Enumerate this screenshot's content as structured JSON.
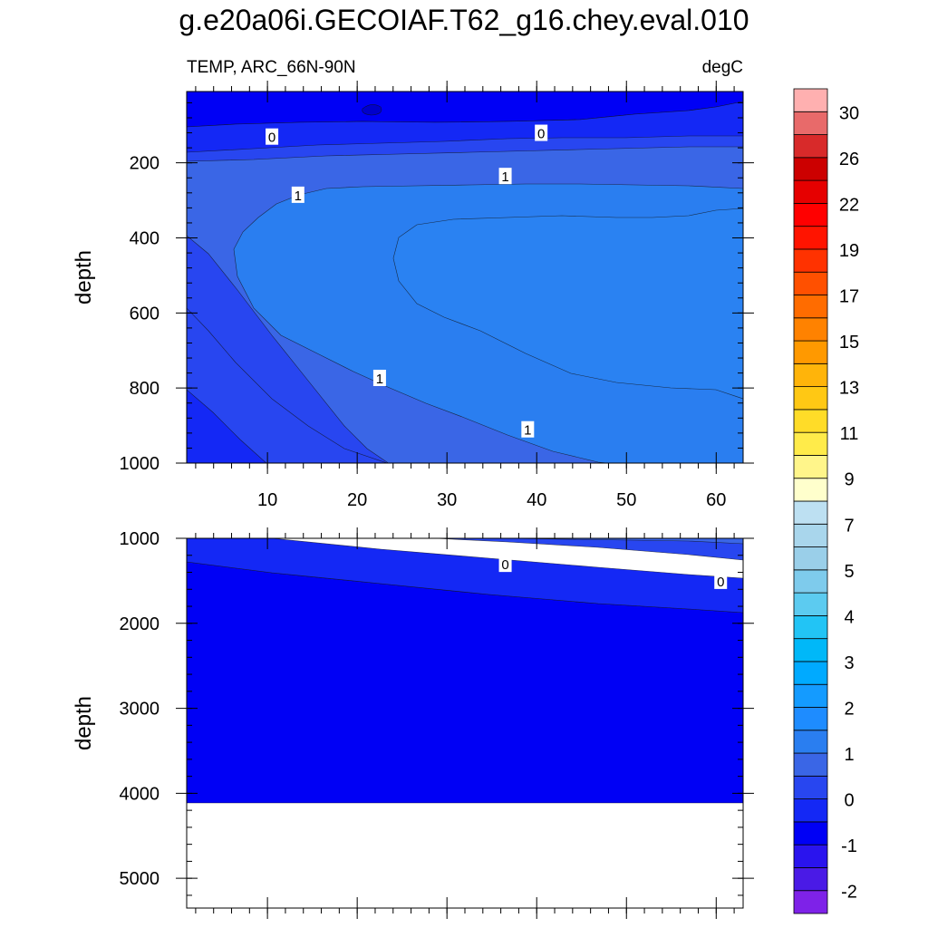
{
  "title": "g.e20a06i.GECOIAF.T62_g16.chey.eval.010",
  "subtitle_left": "TEMP, ARC_66N-90N",
  "subtitle_right": "degC",
  "colors": {
    "below_m1": "#0000f5",
    "m1_to_0": "#1428f5",
    "c0_to_05": "#2846f0",
    "c05_to_1": "#3a66e6",
    "c1_to_2": "#2a7ef0",
    "missing": "#ffffff"
  },
  "chart_data": [
    {
      "type": "contour",
      "panel": "upper",
      "title": "TEMP, ARC_66N-90N",
      "units": "degC",
      "xlabel": "",
      "ylabel": "depth",
      "xlim": [
        1,
        63
      ],
      "ylim": [
        1000,
        10
      ],
      "xticks": [
        10,
        20,
        30,
        40,
        50,
        60
      ],
      "xtick_labels": [
        "10",
        "20",
        "30",
        "40",
        "50",
        "60"
      ],
      "yticks": [
        200,
        400,
        600,
        800,
        1000
      ],
      "ytick_labels": [
        "200",
        "400",
        "600",
        "800",
        "1000"
      ],
      "contour_labels": [
        {
          "text": "0",
          "x": 10.5,
          "y": 130
        },
        {
          "text": "0",
          "x": 40.5,
          "y": 120
        },
        {
          "text": "1",
          "x": 36.5,
          "y": 235
        },
        {
          "text": "1",
          "x": 13.4,
          "y": 285
        },
        {
          "text": "1",
          "x": 22.5,
          "y": 773
        },
        {
          "text": "1",
          "x": 39.0,
          "y": 910
        }
      ]
    },
    {
      "type": "contour",
      "panel": "lower",
      "xlabel": "",
      "ylabel": "depth",
      "xlim": [
        1,
        63
      ],
      "ylim": [
        5350,
        1000
      ],
      "yticks": [
        1000,
        2000,
        3000,
        4000,
        5000
      ],
      "ytick_labels": [
        "1000",
        "2000",
        "3000",
        "4000",
        "5000"
      ],
      "contour_labels": [
        {
          "text": "0",
          "x": 36.5,
          "y": 1300
        },
        {
          "text": "0",
          "x": 60.5,
          "y": 1500
        }
      ],
      "missing_below_depth": 4100
    },
    {
      "type": "colorbar",
      "bins": [
        {
          "color": "#7e22e8",
          "label": "-2"
        },
        {
          "color": "#4a1ae6",
          "label": ""
        },
        {
          "color": "#2a14ee",
          "label": "-1"
        },
        {
          "color": "#0000f5",
          "label": ""
        },
        {
          "color": "#1428f5",
          "label": "0"
        },
        {
          "color": "#2846f0",
          "label": ""
        },
        {
          "color": "#3a66e6",
          "label": "1"
        },
        {
          "color": "#2a7ef0",
          "label": ""
        },
        {
          "color": "#1e8cff",
          "label": "2"
        },
        {
          "color": "#149bff",
          "label": ""
        },
        {
          "color": "#00aaff",
          "label": "3"
        },
        {
          "color": "#00b8f8",
          "label": ""
        },
        {
          "color": "#22c4f5",
          "label": "4"
        },
        {
          "color": "#5ccbf0",
          "label": ""
        },
        {
          "color": "#7ecbec",
          "label": "5"
        },
        {
          "color": "#9acfe9",
          "label": ""
        },
        {
          "color": "#a9d6ec",
          "label": "7"
        },
        {
          "color": "#bde0f2",
          "label": ""
        },
        {
          "color": "#ffffcc",
          "label": "9"
        },
        {
          "color": "#fff58a",
          "label": ""
        },
        {
          "color": "#ffeb4a",
          "label": "11"
        },
        {
          "color": "#ffdc28",
          "label": ""
        },
        {
          "color": "#ffc814",
          "label": "13"
        },
        {
          "color": "#ffb40a",
          "label": ""
        },
        {
          "color": "#ff9900",
          "label": "15"
        },
        {
          "color": "#ff8200",
          "label": ""
        },
        {
          "color": "#ff6c00",
          "label": "17"
        },
        {
          "color": "#ff5000",
          "label": ""
        },
        {
          "color": "#ff3200",
          "label": "19"
        },
        {
          "color": "#ff1400",
          "label": ""
        },
        {
          "color": "#ff0000",
          "label": "22"
        },
        {
          "color": "#e60000",
          "label": ""
        },
        {
          "color": "#cc0000",
          "label": "26"
        },
        {
          "color": "#d82a2a",
          "label": ""
        },
        {
          "color": "#e86a6a",
          "label": "30"
        },
        {
          "color": "#ffb0b0",
          "label": ""
        }
      ]
    }
  ]
}
